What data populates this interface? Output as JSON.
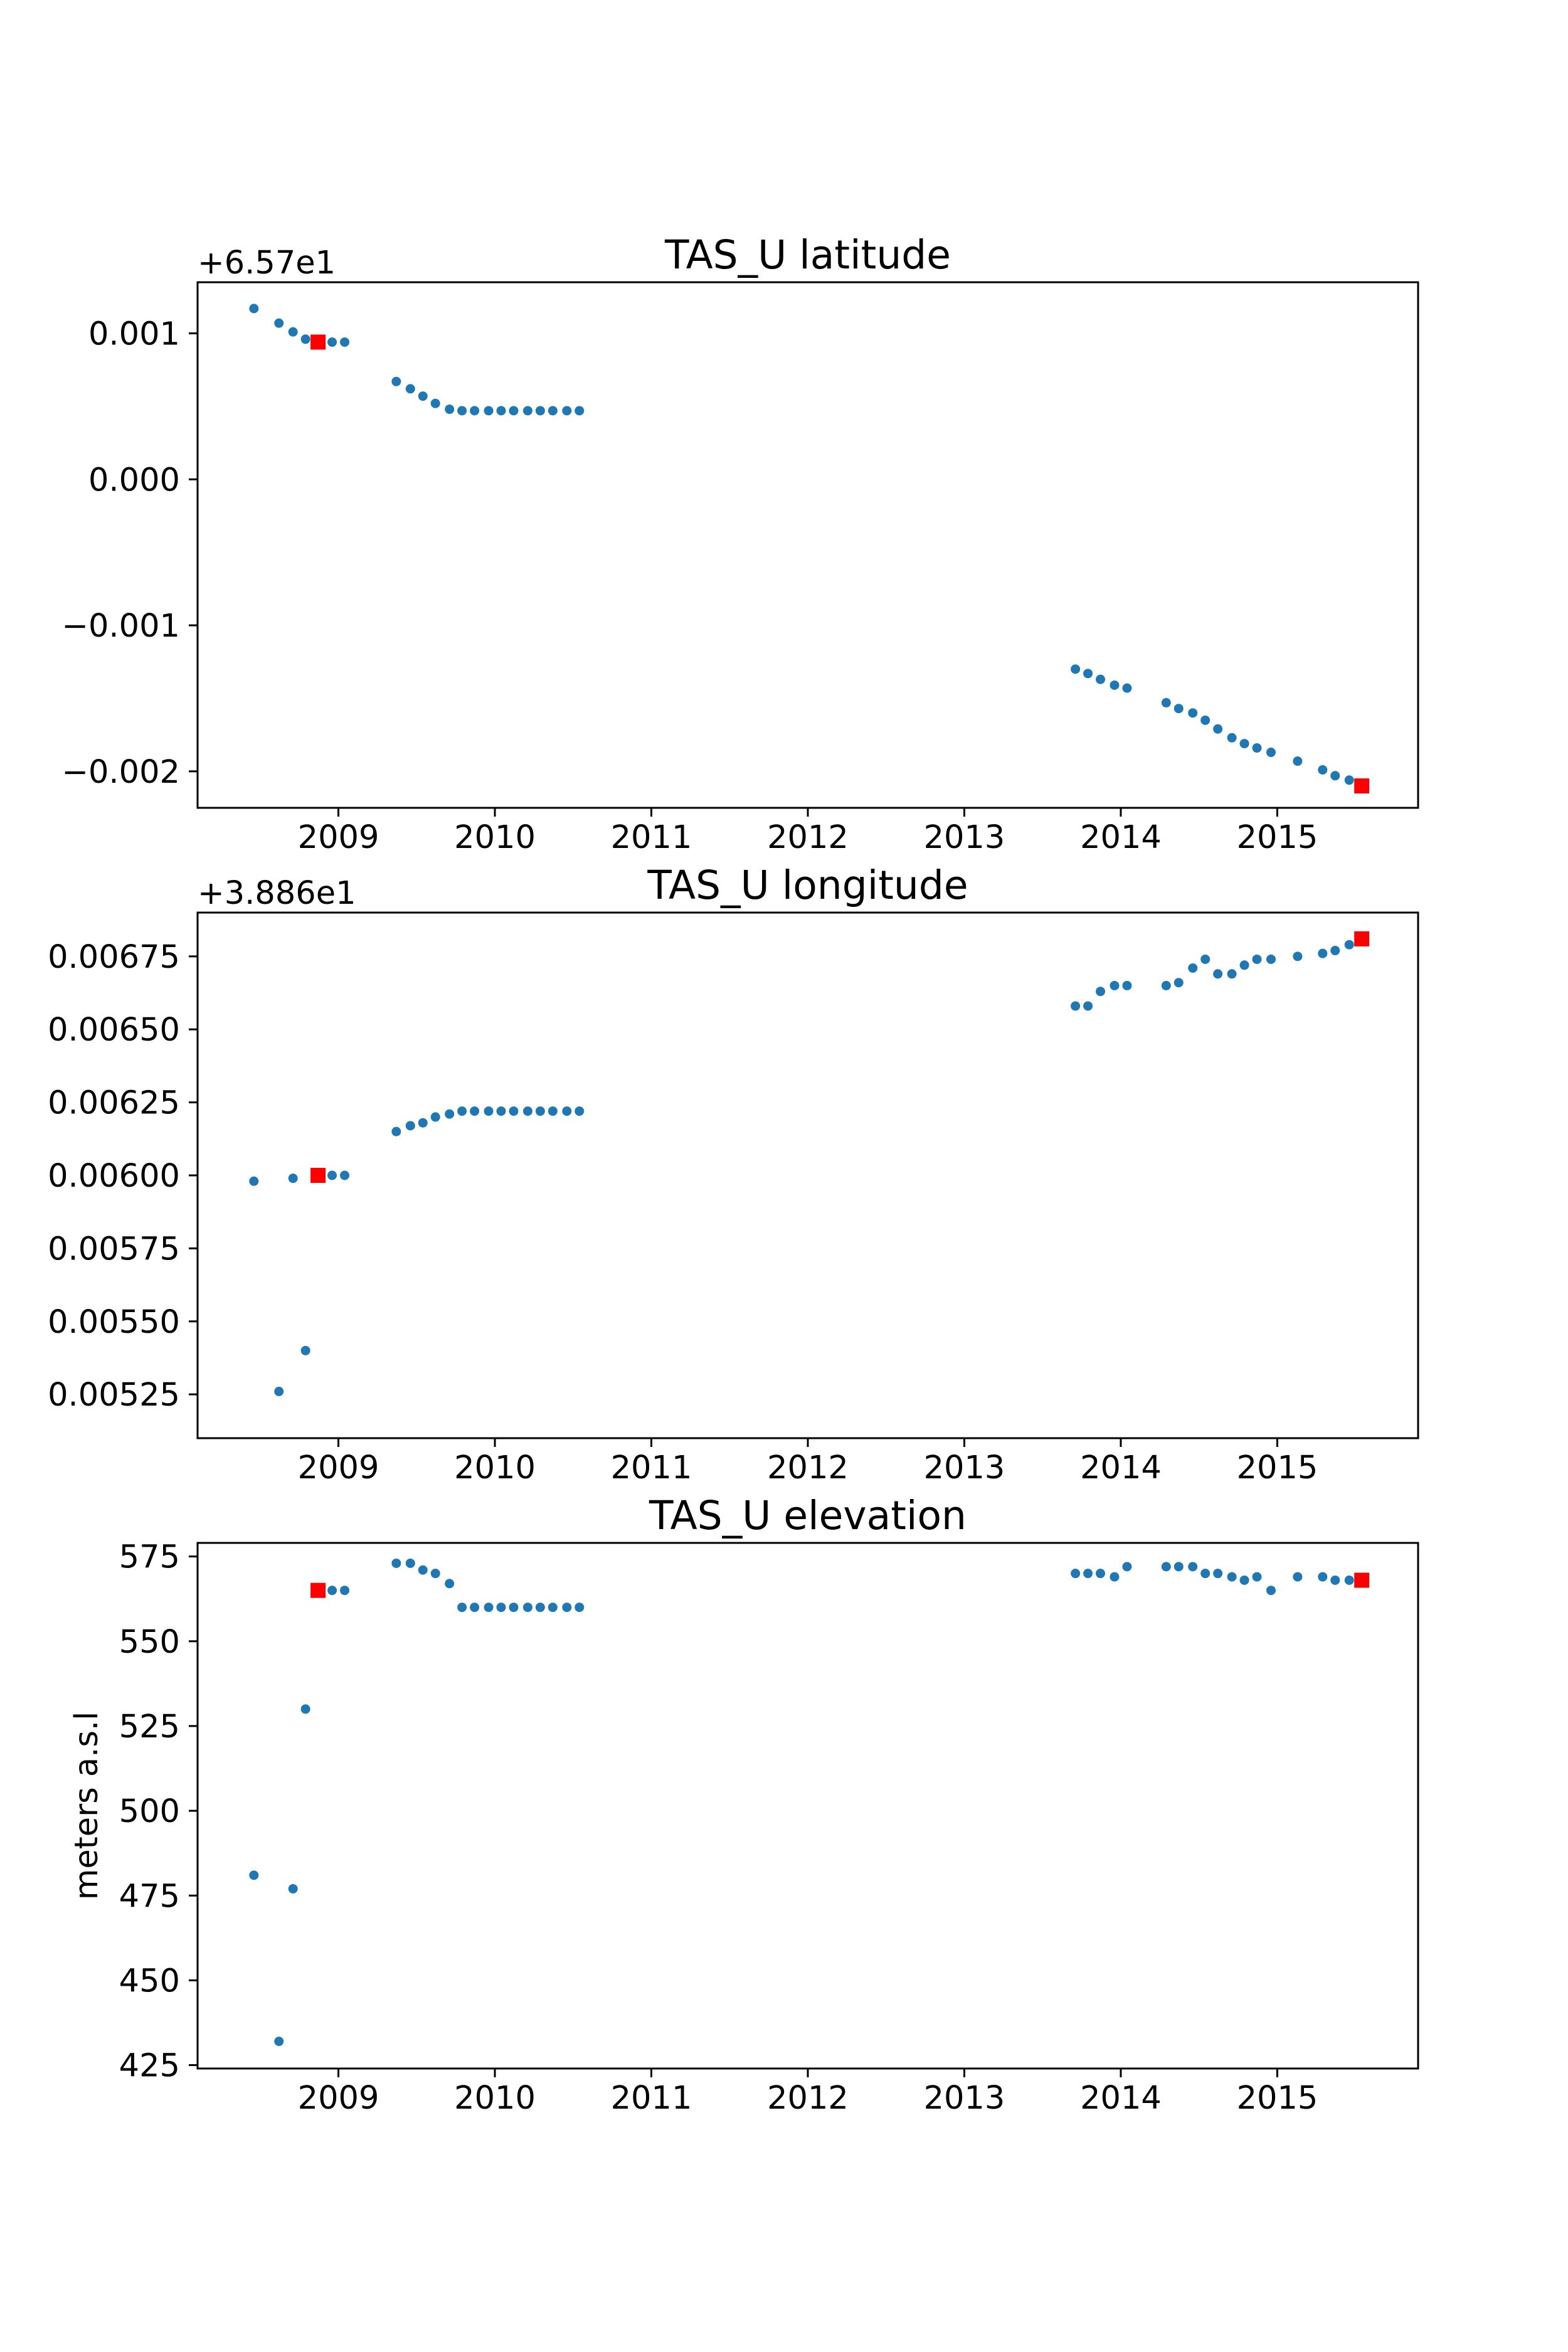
{
  "colors": {
    "point": "#1f77b4",
    "marker": "#ff0000",
    "axis": "#000000",
    "background": "#ffffff"
  },
  "chart_data": [
    {
      "type": "scatter",
      "title": "TAS_U latitude",
      "offset_label": "+6.57e1",
      "ylabel": "",
      "xlim": [
        2008.1,
        2015.9
      ],
      "ylim": [
        -0.00225,
        0.00135
      ],
      "xticks": [
        2009,
        2010,
        2011,
        2012,
        2013,
        2014,
        2015
      ],
      "xtick_labels": [
        "2009",
        "2010",
        "2011",
        "2012",
        "2013",
        "2014",
        "2015"
      ],
      "yticks": [
        0.001,
        0.0,
        -0.001,
        -0.002
      ],
      "ytick_labels": [
        "0.001",
        "0.000",
        "−0.001",
        "−0.002"
      ],
      "grid": false,
      "series": [
        {
          "x": [
            2008.46,
            2008.62,
            2008.71,
            2008.79,
            2008.88,
            2008.96,
            2009.04,
            2009.37,
            2009.46,
            2009.54,
            2009.62,
            2009.71,
            2009.79,
            2009.87,
            2009.96,
            2010.04,
            2010.12,
            2010.21,
            2010.29,
            2010.37,
            2010.46,
            2010.54,
            2013.71,
            2013.79,
            2013.87,
            2013.96,
            2014.04,
            2014.29,
            2014.37,
            2014.46,
            2014.54,
            2014.62,
            2014.71,
            2014.79,
            2014.87,
            2014.96,
            2015.13,
            2015.29,
            2015.37,
            2015.46
          ],
          "y": [
            0.00117,
            0.00107,
            0.00101,
            0.00096,
            0.00094,
            0.00094,
            0.00094,
            0.00067,
            0.00062,
            0.00057,
            0.00052,
            0.00048,
            0.00047,
            0.00047,
            0.00047,
            0.00047,
            0.00047,
            0.00047,
            0.00047,
            0.00047,
            0.00047,
            0.00047,
            -0.0013,
            -0.00133,
            -0.00137,
            -0.00141,
            -0.00143,
            -0.00153,
            -0.00157,
            -0.0016,
            -0.00165,
            -0.00171,
            -0.00177,
            -0.00181,
            -0.00184,
            -0.00187,
            -0.00193,
            -0.00199,
            -0.00203,
            -0.00206
          ]
        },
        {
          "marker": "square",
          "x": [
            2008.87,
            2015.54
          ],
          "y": [
            0.00094,
            -0.0021
          ]
        }
      ]
    },
    {
      "type": "scatter",
      "title": "TAS_U longitude",
      "offset_label": "+3.886e1",
      "ylabel": "",
      "xlim": [
        2008.1,
        2015.9
      ],
      "ylim": [
        0.0051,
        0.0069
      ],
      "xticks": [
        2009,
        2010,
        2011,
        2012,
        2013,
        2014,
        2015
      ],
      "xtick_labels": [
        "2009",
        "2010",
        "2011",
        "2012",
        "2013",
        "2014",
        "2015"
      ],
      "yticks": [
        0.00675,
        0.0065,
        0.00625,
        0.006,
        0.00575,
        0.0055,
        0.00525
      ],
      "ytick_labels": [
        "0.00675",
        "0.00650",
        "0.00625",
        "0.00600",
        "0.00575",
        "0.00550",
        "0.00525"
      ],
      "grid": false,
      "series": [
        {
          "x": [
            2008.46,
            2008.62,
            2008.71,
            2008.79,
            2008.88,
            2008.96,
            2009.04,
            2009.37,
            2009.46,
            2009.54,
            2009.62,
            2009.71,
            2009.79,
            2009.87,
            2009.96,
            2010.04,
            2010.12,
            2010.21,
            2010.29,
            2010.37,
            2010.46,
            2010.54,
            2013.71,
            2013.79,
            2013.87,
            2013.96,
            2014.04,
            2014.29,
            2014.37,
            2014.46,
            2014.54,
            2014.62,
            2014.71,
            2014.79,
            2014.87,
            2014.96,
            2015.13,
            2015.29,
            2015.37,
            2015.46
          ],
          "y": [
            0.00598,
            0.00526,
            0.00599,
            0.0054,
            0.006,
            0.006,
            0.006,
            0.00615,
            0.00617,
            0.00618,
            0.0062,
            0.00621,
            0.00622,
            0.00622,
            0.00622,
            0.00622,
            0.00622,
            0.00622,
            0.00622,
            0.00622,
            0.00622,
            0.00622,
            0.00658,
            0.00658,
            0.00663,
            0.00665,
            0.00665,
            0.00665,
            0.00666,
            0.00671,
            0.00674,
            0.00669,
            0.00669,
            0.00672,
            0.00674,
            0.00674,
            0.00675,
            0.00676,
            0.00677,
            0.00679
          ]
        },
        {
          "marker": "square",
          "x": [
            2008.87,
            2015.54
          ],
          "y": [
            0.006,
            0.00681
          ]
        }
      ]
    },
    {
      "type": "scatter",
      "title": "TAS_U elevation",
      "offset_label": "",
      "ylabel": "meters a.s.l",
      "xlim": [
        2008.1,
        2015.9
      ],
      "ylim": [
        424,
        579
      ],
      "xticks": [
        2009,
        2010,
        2011,
        2012,
        2013,
        2014,
        2015
      ],
      "xtick_labels": [
        "2009",
        "2010",
        "2011",
        "2012",
        "2013",
        "2014",
        "2015"
      ],
      "yticks": [
        575,
        550,
        525,
        500,
        475,
        450,
        425
      ],
      "ytick_labels": [
        "575",
        "550",
        "525",
        "500",
        "475",
        "450",
        "425"
      ],
      "grid": false,
      "series": [
        {
          "x": [
            2008.46,
            2008.62,
            2008.71,
            2008.79,
            2008.88,
            2008.96,
            2009.04,
            2009.37,
            2009.46,
            2009.54,
            2009.62,
            2009.71,
            2009.79,
            2009.87,
            2009.96,
            2010.04,
            2010.12,
            2010.21,
            2010.29,
            2010.37,
            2010.46,
            2010.54,
            2013.71,
            2013.79,
            2013.87,
            2013.96,
            2014.04,
            2014.29,
            2014.37,
            2014.46,
            2014.54,
            2014.62,
            2014.71,
            2014.79,
            2014.87,
            2014.96,
            2015.13,
            2015.29,
            2015.37,
            2015.46
          ],
          "y": [
            481,
            432,
            477,
            530,
            565,
            565,
            565,
            573,
            573,
            571,
            570,
            567,
            560,
            560,
            560,
            560,
            560,
            560,
            560,
            560,
            560,
            560,
            570,
            570,
            570,
            569,
            572,
            572,
            572,
            572,
            570,
            570,
            569,
            568,
            569,
            565,
            569,
            569,
            568,
            568
          ]
        },
        {
          "marker": "square",
          "x": [
            2008.87,
            2015.54
          ],
          "y": [
            565,
            568
          ]
        }
      ]
    }
  ]
}
